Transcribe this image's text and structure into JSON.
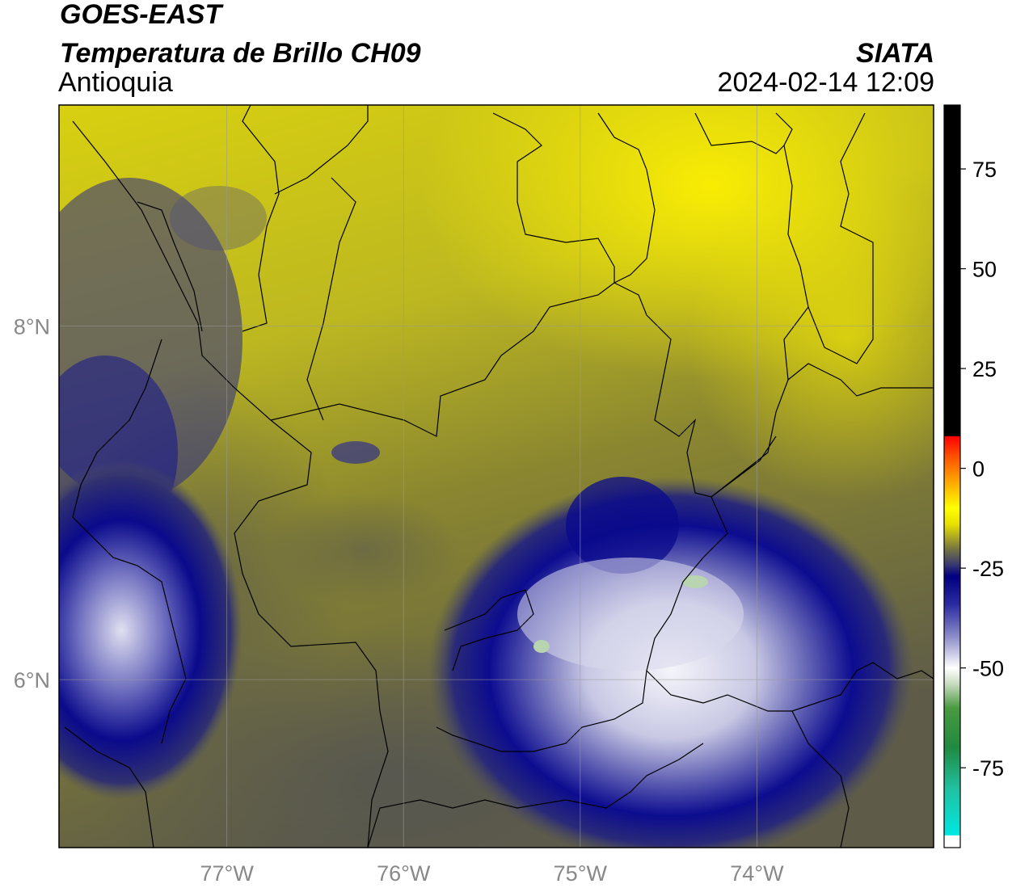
{
  "header": {
    "title_line1": "GOES-EAST",
    "title_line2": "Temperatura de Brillo CH09",
    "organization": "SIATA",
    "region": "Antioquia",
    "timestamp": "2024-02-14 12:09"
  },
  "map": {
    "lon_range": [
      -77.95,
      -73.0
    ],
    "lat_range": [
      5.05,
      9.25
    ],
    "lon_ticks": [
      {
        "value": -77,
        "label": "77°W"
      },
      {
        "value": -76,
        "label": "76°W"
      },
      {
        "value": -75,
        "label": "75°W"
      },
      {
        "value": -74,
        "label": "74°W"
      }
    ],
    "lat_ticks": [
      {
        "value": 8,
        "label": "8°N"
      },
      {
        "value": 6,
        "label": "6°N"
      }
    ],
    "colors": {
      "warm_yellow": "#f7f200",
      "olive": "#8e8a2a",
      "gray": "#5a5a56",
      "deep_blue": "#0a0a8c",
      "pale_white": "#e8e8f0",
      "grid": "#9a9a9a"
    }
  },
  "colorbar": {
    "range": [
      -95,
      91
    ],
    "tick_labels": [
      {
        "value": 75,
        "label": "75"
      },
      {
        "value": 50,
        "label": "50"
      },
      {
        "value": 25,
        "label": "25"
      },
      {
        "value": 0,
        "label": "0"
      },
      {
        "value": -25,
        "label": "-25"
      },
      {
        "value": -50,
        "label": "-50"
      },
      {
        "value": -75,
        "label": "-75"
      }
    ],
    "stops": [
      {
        "value": -95,
        "color": "#ffffff"
      },
      {
        "value": -92,
        "color": "#ffffff"
      },
      {
        "value": -91.9,
        "color": "#00e8e0"
      },
      {
        "value": -80,
        "color": "#20c0a0"
      },
      {
        "value": -70,
        "color": "#208a40"
      },
      {
        "value": -60,
        "color": "#4a9a40"
      },
      {
        "value": -54,
        "color": "#c8dcc0"
      },
      {
        "value": -50,
        "color": "#ffffff"
      },
      {
        "value": -42,
        "color": "#8a8ac8"
      },
      {
        "value": -34,
        "color": "#2a2aa0"
      },
      {
        "value": -27,
        "color": "#000080"
      },
      {
        "value": -24,
        "color": "#3a3a70"
      },
      {
        "value": -20,
        "color": "#7a7840"
      },
      {
        "value": -14,
        "color": "#e8e000"
      },
      {
        "value": -10,
        "color": "#ffff00"
      },
      {
        "value": -4,
        "color": "#ffb000"
      },
      {
        "value": 3,
        "color": "#ff5000"
      },
      {
        "value": 8,
        "color": "#ff0000"
      },
      {
        "value": 8.1,
        "color": "#000000"
      },
      {
        "value": 91,
        "color": "#000000"
      }
    ]
  }
}
